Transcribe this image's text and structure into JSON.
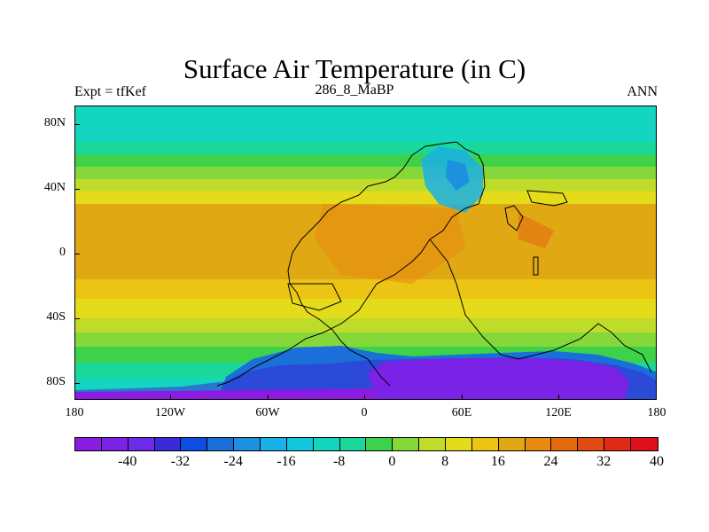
{
  "title": "Surface Air Temperature (in C)",
  "left_label": "Expt = tfKef",
  "center_label": "286_8_MaBP",
  "right_label": "ANN",
  "lat_ticks": [
    "80N",
    "40N",
    "0",
    "40S",
    "80S"
  ],
  "lon_ticks": [
    "180",
    "120W",
    "60W",
    "0",
    "60E",
    "120E",
    "180"
  ],
  "colorbar": {
    "colors": [
      "#8a1be0",
      "#7a22e6",
      "#6b2be8",
      "#3a2bd8",
      "#0c4fe0",
      "#1a6fd8",
      "#1e90e0",
      "#1ab0e8",
      "#12c6e0",
      "#14d6c0",
      "#1ad89a",
      "#3ed24a",
      "#86d83a",
      "#c0dc2a",
      "#e4dc1a",
      "#ecc414",
      "#e0a812",
      "#e88a10",
      "#e46a10",
      "#e24a14",
      "#e02a16",
      "#e0101a"
    ],
    "labels": [
      "-40",
      "-32",
      "-24",
      "-16",
      "-8",
      "0",
      "8",
      "16",
      "24",
      "32",
      "40"
    ]
  }
}
